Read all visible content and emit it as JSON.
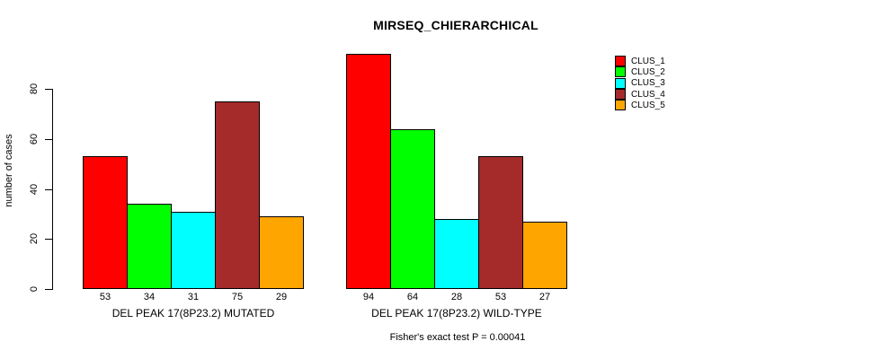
{
  "title": "MIRSEQ_CHIERARCHICAL",
  "y_axis": {
    "label": "number of cases",
    "ticks": [
      0,
      20,
      40,
      60,
      80
    ]
  },
  "footer_note": "Fisher's exact test P = 0.00041",
  "legend": {
    "position": "right",
    "items": [
      {
        "label": "CLUS_1",
        "color": "#FF0000"
      },
      {
        "label": "CLUS_2",
        "color": "#00FF00"
      },
      {
        "label": "CLUS_3",
        "color": "#00FFFF"
      },
      {
        "label": "CLUS_4",
        "color": "#A52A2A"
      },
      {
        "label": "CLUS_5",
        "color": "#FFA500"
      }
    ]
  },
  "chart_data": {
    "type": "bar",
    "title": "MIRSEQ_CHIERARCHICAL",
    "ylabel": "number of cases",
    "xlabel": "",
    "ylim": [
      0,
      94
    ],
    "yticks": [
      0,
      20,
      40,
      60,
      80
    ],
    "grid": false,
    "legend_position": "right",
    "series_names": [
      "CLUS_1",
      "CLUS_2",
      "CLUS_3",
      "CLUS_4",
      "CLUS_5"
    ],
    "series_colors": [
      "#FF0000",
      "#00FF00",
      "#00FFFF",
      "#A52A2A",
      "#FFA500"
    ],
    "groups": [
      {
        "category": "DEL PEAK 17(8P23.2) MUTATED",
        "values": [
          53,
          34,
          31,
          75,
          29
        ]
      },
      {
        "category": "DEL PEAK 17(8P23.2) WILD-TYPE",
        "values": [
          94,
          64,
          28,
          53,
          27
        ]
      }
    ],
    "bar_value_labels_shown": true,
    "annotation": "Fisher's exact test P = 0.00041"
  }
}
